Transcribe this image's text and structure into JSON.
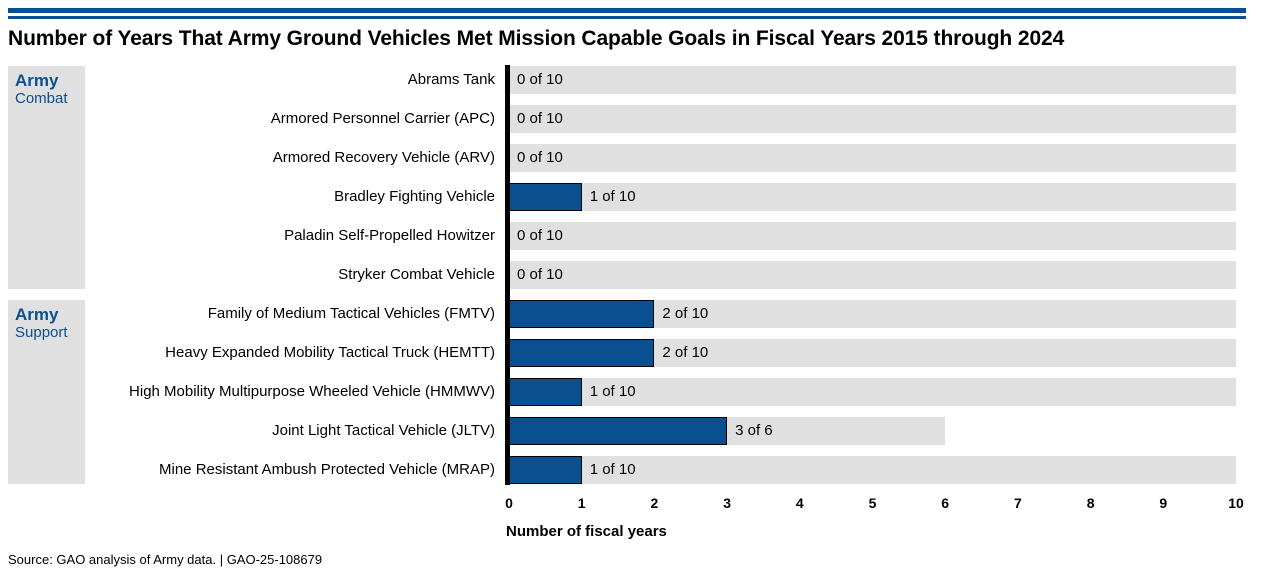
{
  "chart_data": {
    "type": "bar",
    "orientation": "horizontal",
    "title": "Number of Years That Army Ground Vehicles Met Mission Capable Goals in Fiscal Years 2015 through 2024",
    "xlabel": "Number of fiscal years",
    "ylabel": "",
    "xlim": [
      0,
      10
    ],
    "x_ticks": [
      "0",
      "1",
      "2",
      "3",
      "4",
      "5",
      "6",
      "7",
      "8",
      "9",
      "10"
    ],
    "groups": [
      {
        "name_line1": "Army",
        "name_line2": "Combat",
        "items": [
          {
            "label": "Abrams Tank",
            "value": 0,
            "total": 10,
            "value_label": "0 of 10"
          },
          {
            "label": "Armored Personnel Carrier (APC)",
            "value": 0,
            "total": 10,
            "value_label": "0 of 10"
          },
          {
            "label": "Armored Recovery Vehicle (ARV)",
            "value": 0,
            "total": 10,
            "value_label": "0 of 10"
          },
          {
            "label": "Bradley Fighting Vehicle",
            "value": 1,
            "total": 10,
            "value_label": "1 of 10"
          },
          {
            "label": "Paladin Self-Propelled Howitzer",
            "value": 0,
            "total": 10,
            "value_label": "0 of 10"
          },
          {
            "label": "Stryker Combat Vehicle",
            "value": 0,
            "total": 10,
            "value_label": "0 of 10"
          }
        ]
      },
      {
        "name_line1": "Army",
        "name_line2": "Support",
        "items": [
          {
            "label": "Family of Medium Tactical Vehicles (FMTV)",
            "value": 2,
            "total": 10,
            "value_label": "2 of 10"
          },
          {
            "label": "Heavy Expanded Mobility Tactical Truck (HEMTT)",
            "value": 2,
            "total": 10,
            "value_label": "2 of 10"
          },
          {
            "label": "High Mobility Multipurpose Wheeled Vehicle (HMMWV)",
            "value": 1,
            "total": 10,
            "value_label": "1 of 10"
          },
          {
            "label": "Joint Light Tactical Vehicle (JLTV)",
            "value": 3,
            "total": 6,
            "value_label": "3 of 6"
          },
          {
            "label": "Mine Resistant Ambush Protected Vehicle (MRAP)",
            "value": 1,
            "total": 10,
            "value_label": "1 of 10"
          }
        ]
      }
    ],
    "colors": {
      "bar": "#0a4f8f",
      "track": "#e0e0e0",
      "group_text": "#0a4f8f"
    },
    "grid": false,
    "legend": "none"
  },
  "source_note": "Source: GAO analysis of Army data.  |  GAO-25-108679"
}
